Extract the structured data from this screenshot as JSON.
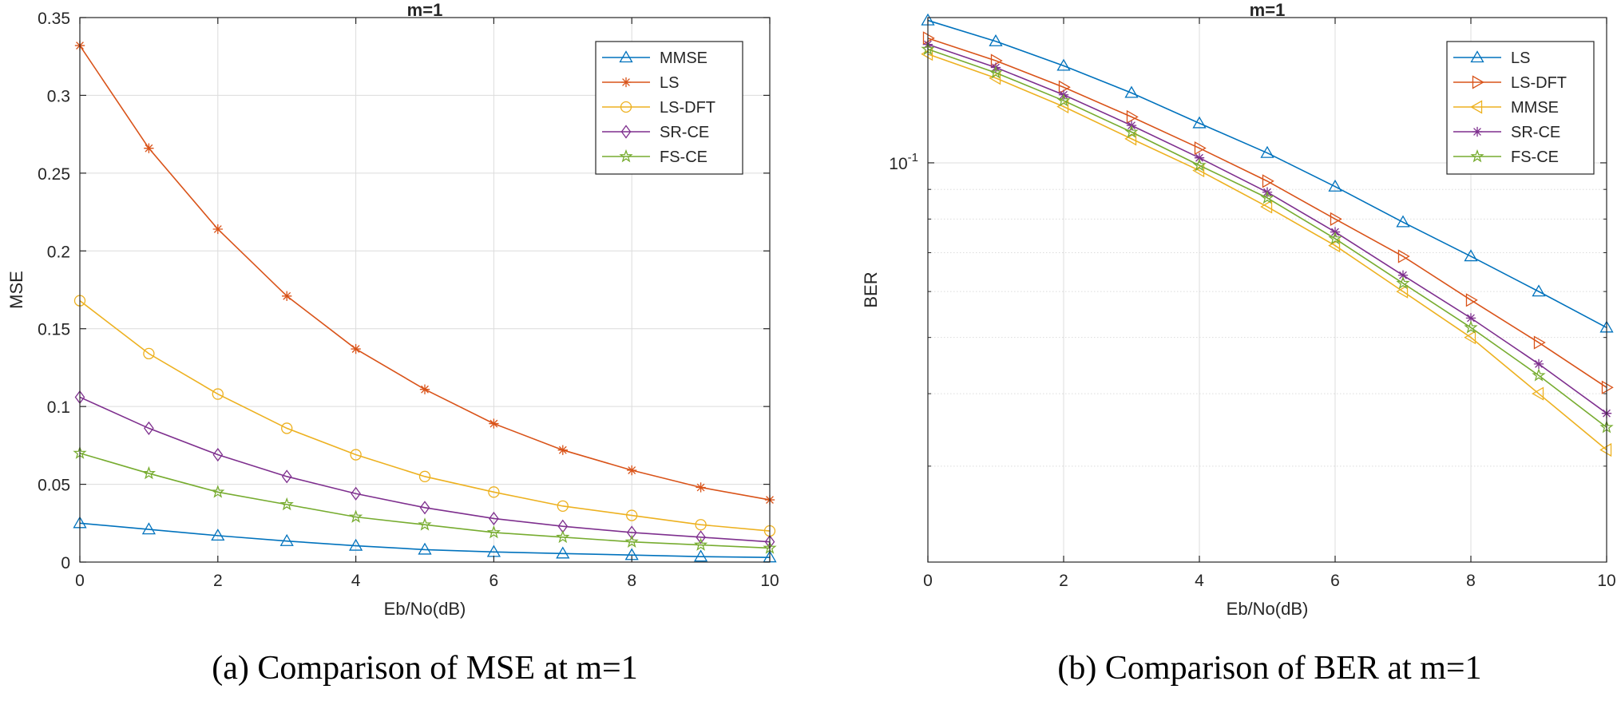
{
  "chart_data": [
    {
      "type": "line",
      "title": "m=1",
      "xlabel": "Eb/No(dB)",
      "ylabel": "MSE",
      "caption": "(a) Comparison of MSE at m=1",
      "xlim": [
        0,
        10
      ],
      "ylim": [
        0,
        0.35
      ],
      "yscale": "linear",
      "grid": true,
      "legend_position": "top-right",
      "xticks": [
        0,
        2,
        4,
        6,
        8,
        10
      ],
      "xtick_labels": [
        "0",
        "2",
        "4",
        "6",
        "8",
        "10"
      ],
      "yticks": [
        0,
        0.05,
        0.1,
        0.15,
        0.2,
        0.25,
        0.3,
        0.35
      ],
      "ytick_labels": [
        "0",
        "0.05",
        "0.1",
        "0.15",
        "0.2",
        "0.25",
        "0.3",
        "0.35"
      ],
      "x": [
        0,
        1,
        2,
        3,
        4,
        5,
        6,
        7,
        8,
        9,
        10
      ],
      "series": [
        {
          "name": "MMSE",
          "color": "#0072BD",
          "marker": "triangle-up",
          "values": [
            0.025,
            0.021,
            0.017,
            0.0135,
            0.0105,
            0.008,
            0.0065,
            0.0055,
            0.0045,
            0.0035,
            0.003
          ]
        },
        {
          "name": "LS",
          "color": "#D95319",
          "marker": "asterisk",
          "values": [
            0.332,
            0.266,
            0.214,
            0.171,
            0.137,
            0.111,
            0.089,
            0.072,
            0.059,
            0.048,
            0.04
          ]
        },
        {
          "name": "LS-DFT",
          "color": "#EDB120",
          "marker": "circle",
          "values": [
            0.168,
            0.134,
            0.108,
            0.086,
            0.069,
            0.055,
            0.045,
            0.036,
            0.03,
            0.024,
            0.02
          ]
        },
        {
          "name": "SR-CE",
          "color": "#7E2F8E",
          "marker": "diamond",
          "values": [
            0.106,
            0.086,
            0.069,
            0.055,
            0.044,
            0.035,
            0.028,
            0.023,
            0.019,
            0.016,
            0.013
          ]
        },
        {
          "name": "FS-CE",
          "color": "#77AC30",
          "marker": "pentagram",
          "values": [
            0.07,
            0.057,
            0.045,
            0.037,
            0.029,
            0.024,
            0.019,
            0.016,
            0.013,
            0.011,
            0.009
          ]
        }
      ]
    },
    {
      "type": "line",
      "title": "m=1",
      "xlabel": "Eb/No(dB)",
      "ylabel": "BER",
      "caption": "(b) Comparison of BER at m=1",
      "xlim": [
        0,
        10
      ],
      "ylim": [
        0.0205,
        0.178
      ],
      "yscale": "log",
      "grid": true,
      "legend_position": "top-right",
      "xticks": [
        0,
        2,
        4,
        6,
        8,
        10
      ],
      "xtick_labels": [
        "0",
        "2",
        "4",
        "6",
        "8",
        "10"
      ],
      "yticks": [
        0.1
      ],
      "ytick_label_base": "10",
      "ytick_label_exp": "-1",
      "x": [
        0,
        1,
        2,
        3,
        4,
        5,
        6,
        7,
        8,
        9,
        10
      ],
      "series": [
        {
          "name": "LS",
          "color": "#0072BD",
          "marker": "triangle-up",
          "values": [
            0.176,
            0.162,
            0.147,
            0.132,
            0.117,
            0.104,
            0.091,
            0.079,
            0.069,
            0.06,
            0.052
          ]
        },
        {
          "name": "LS-DFT",
          "color": "#D95319",
          "marker": "triangle-right",
          "values": [
            0.164,
            0.15,
            0.135,
            0.12,
            0.106,
            0.093,
            0.08,
            0.069,
            0.058,
            0.049,
            0.041
          ]
        },
        {
          "name": "MMSE",
          "color": "#EDB120",
          "marker": "triangle-left",
          "values": [
            0.154,
            0.14,
            0.125,
            0.11,
            0.097,
            0.084,
            0.072,
            0.06,
            0.05,
            0.04,
            0.032
          ]
        },
        {
          "name": "SR-CE",
          "color": "#7E2F8E",
          "marker": "asterisk",
          "values": [
            0.16,
            0.146,
            0.131,
            0.116,
            0.102,
            0.089,
            0.076,
            0.064,
            0.054,
            0.045,
            0.037
          ]
        },
        {
          "name": "FS-CE",
          "color": "#77AC30",
          "marker": "pentagram",
          "values": [
            0.157,
            0.143,
            0.128,
            0.113,
            0.099,
            0.087,
            0.074,
            0.062,
            0.052,
            0.043,
            0.035
          ]
        }
      ]
    }
  ]
}
